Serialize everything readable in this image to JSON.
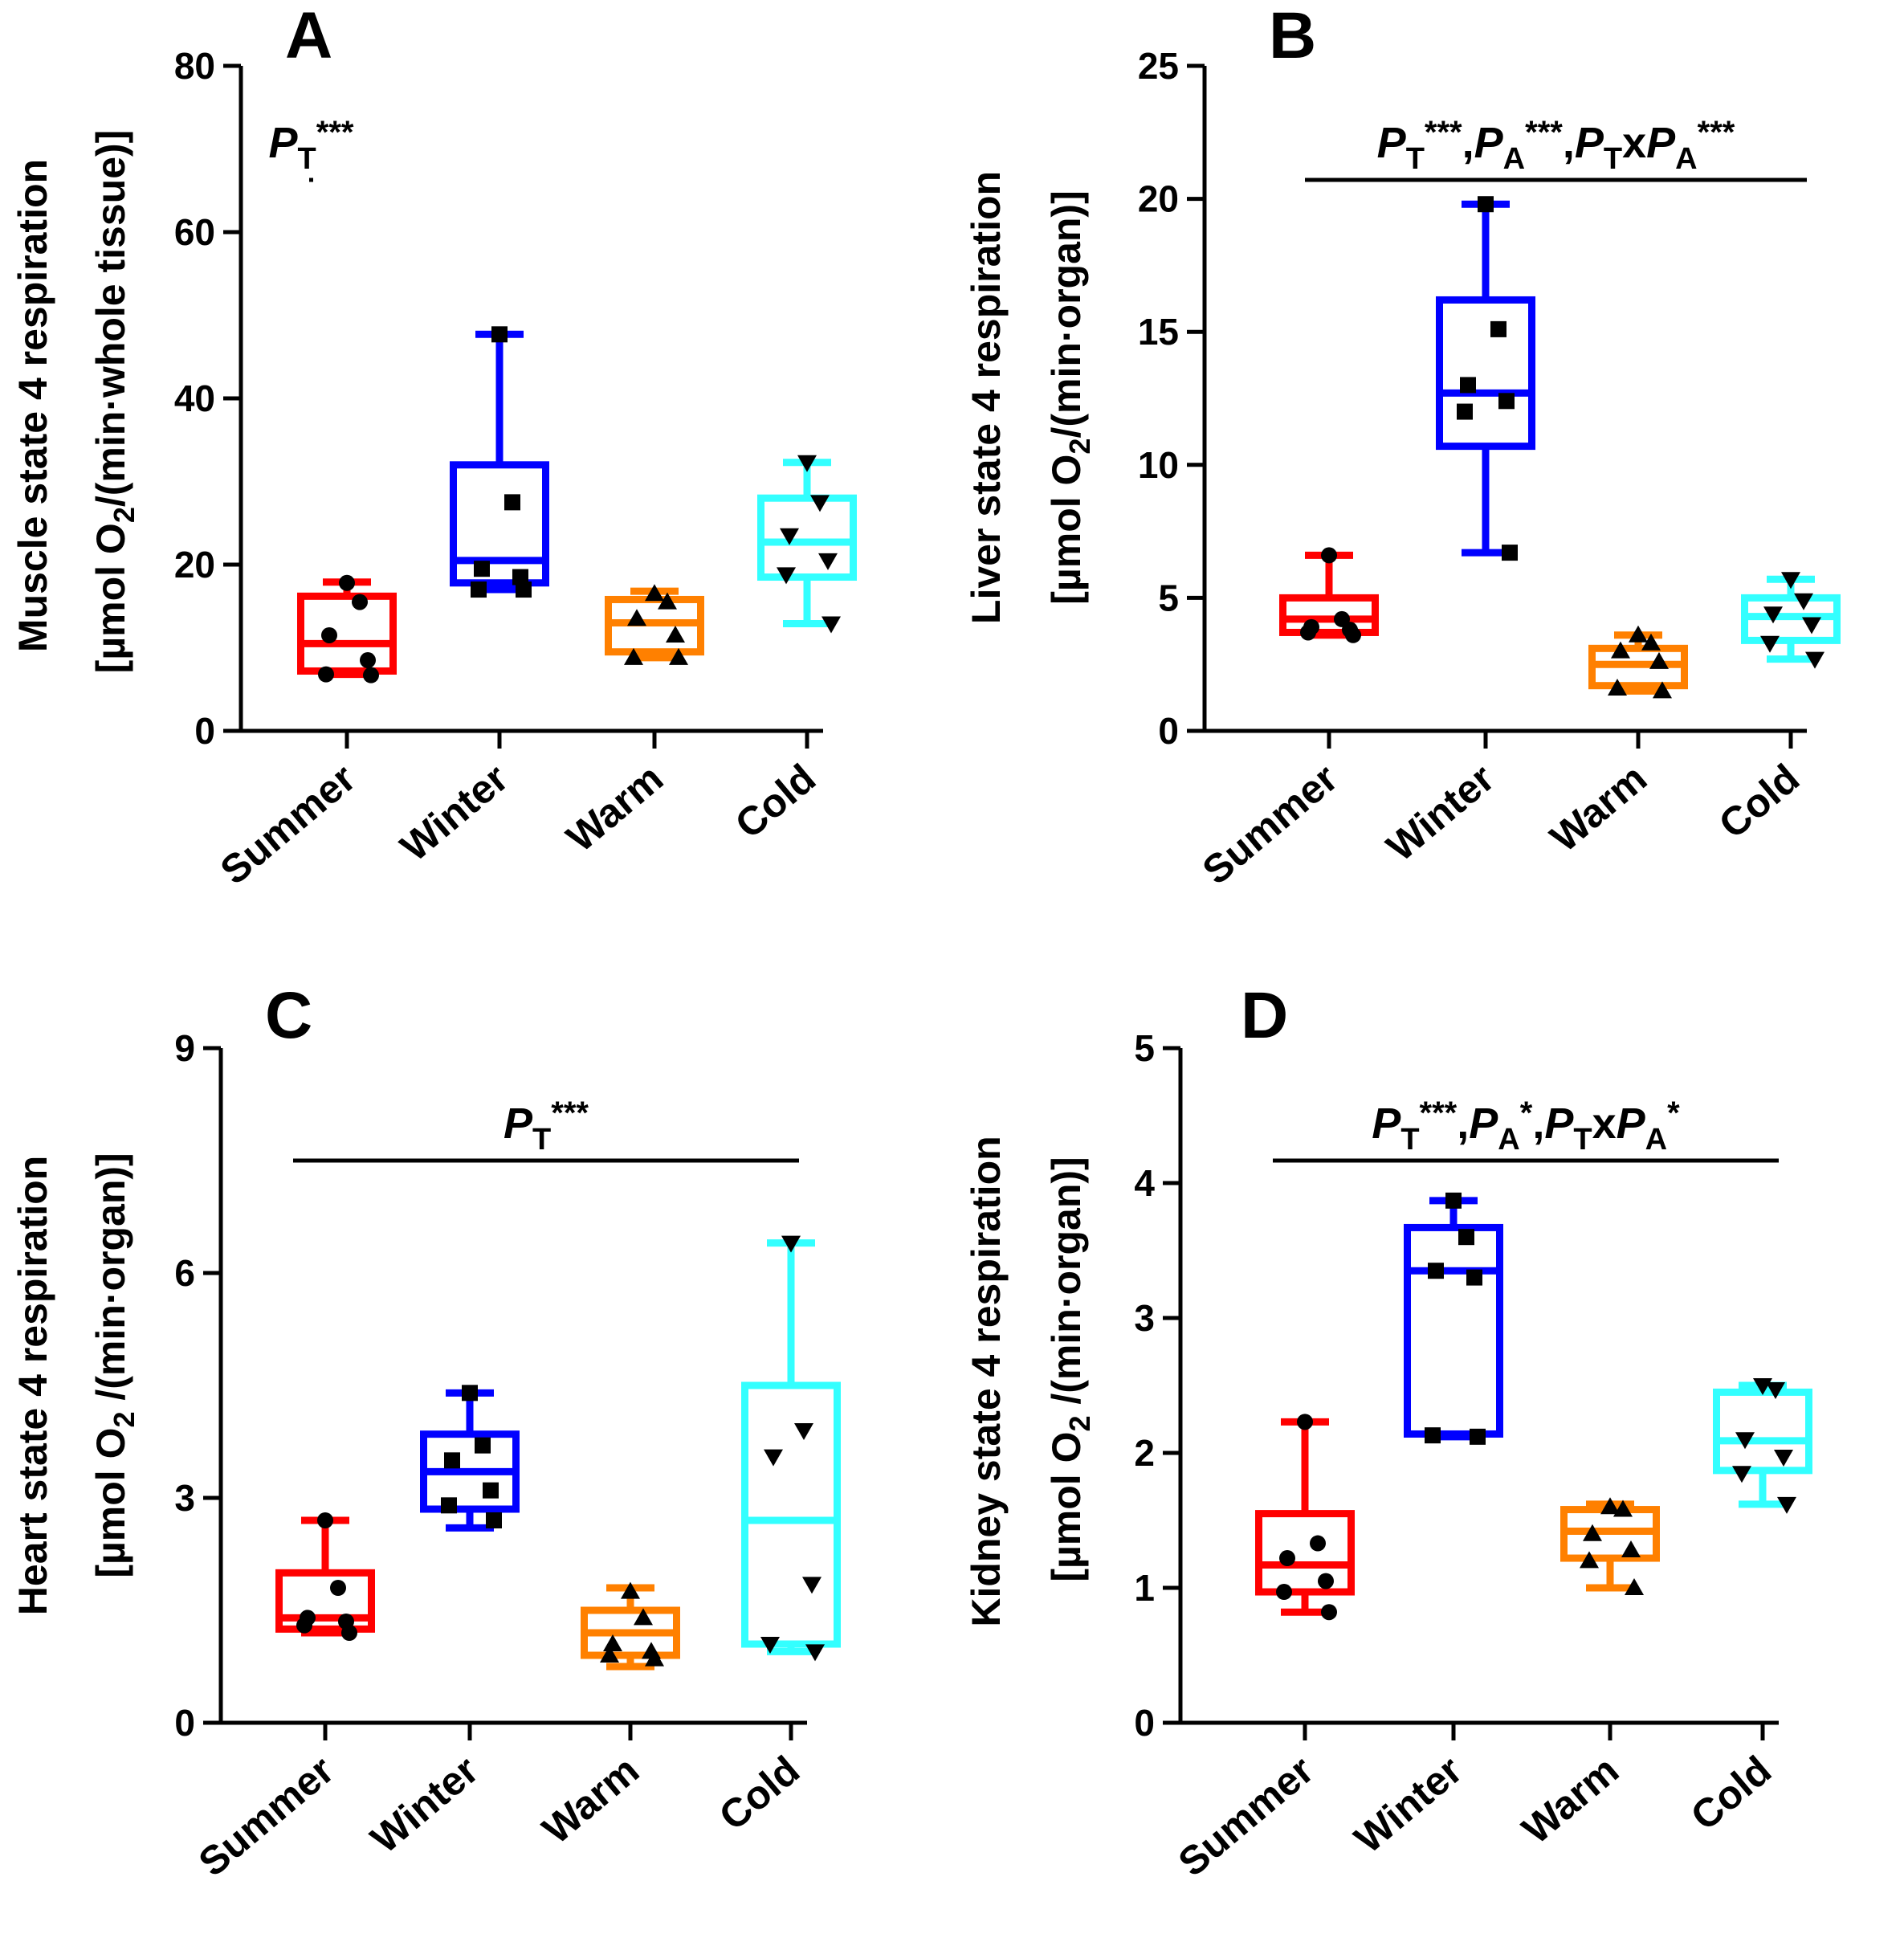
{
  "colors": {
    "Summer": "#ff0000",
    "Winter": "#0000ff",
    "Warm": "#ff8000",
    "Cold": "#33ffff",
    "axis": "#000000",
    "points": "#000000"
  },
  "chart_data": [
    {
      "type": "box",
      "panel": "A",
      "categories": [
        "Summer",
        "Winter",
        "Warm",
        "Cold"
      ],
      "ylabel_line1": "Muscle state 4 respiration",
      "ylabel_line2_prefix": "[µmol O",
      "ylabel_line2_sub": "2",
      "ylabel_line2_suffix": "/(min·whole tissue)]",
      "ylim": [
        0,
        80
      ],
      "yticks": [
        0,
        20,
        40,
        60,
        80
      ],
      "significance": {
        "parts": [
          {
            "t": "P",
            "i": true
          },
          {
            "t": "T",
            "s": "sub"
          },
          {
            "t": "***",
            "s": "sup"
          }
        ]
      },
      "boxes": [
        {
          "name": "Summer",
          "min": 6.8,
          "q1": 7.2,
          "median": 10.5,
          "q3": 16.2,
          "max": 17.9,
          "marker": "circle",
          "points": [
            17.8,
            15.5,
            11.5,
            8.5,
            6.8,
            6.7
          ]
        },
        {
          "name": "Winter",
          "min": 17.0,
          "q1": 17.8,
          "median": 20.5,
          "q3": 32.0,
          "max": 47.7,
          "marker": "square",
          "points": [
            47.7,
            27.5,
            19.5,
            18.5,
            17.0,
            17.0
          ]
        },
        {
          "name": "Warm",
          "min": 8.8,
          "q1": 9.5,
          "median": 13.0,
          "q3": 15.8,
          "max": 16.8,
          "marker": "triangle-up",
          "points": [
            16.5,
            15.5,
            13.5,
            11.5,
            8.8,
            8.8
          ]
        },
        {
          "name": "Cold",
          "min": 12.9,
          "q1": 18.5,
          "median": 22.7,
          "q3": 28.0,
          "max": 32.3,
          "marker": "triangle-down",
          "points": [
            32.3,
            27.5,
            23.5,
            20.5,
            18.8,
            12.9
          ]
        }
      ]
    },
    {
      "type": "box",
      "panel": "B",
      "categories": [
        "Summer",
        "Winter",
        "Warm",
        "Cold"
      ],
      "ylabel_line1": "Liver state 4 respiration",
      "ylabel_line2_prefix": "[µmol O",
      "ylabel_line2_sub": "2",
      "ylabel_line2_suffix": "/(min·organ)]",
      "ylim": [
        0,
        25
      ],
      "yticks": [
        0,
        5,
        10,
        15,
        20,
        25
      ],
      "significance": {
        "parts": [
          {
            "t": "P",
            "i": true
          },
          {
            "t": "T",
            "s": "sub"
          },
          {
            "t": "***",
            "s": "sup"
          },
          {
            "t": ","
          },
          {
            "t": "P",
            "i": true
          },
          {
            "t": "A",
            "s": "sub"
          },
          {
            "t": "***",
            "s": "sup"
          },
          {
            "t": ","
          },
          {
            "t": "P",
            "i": true
          },
          {
            "t": "T",
            "s": "sub"
          },
          {
            "t": "x"
          },
          {
            "t": "P",
            "i": true
          },
          {
            "t": "A",
            "s": "sub"
          },
          {
            "t": "***",
            "s": "sup"
          }
        ]
      },
      "boxes": [
        {
          "name": "Summer",
          "min": 3.6,
          "q1": 3.7,
          "median": 4.2,
          "q3": 5.0,
          "max": 6.6,
          "marker": "circle",
          "points": [
            6.6,
            4.2,
            3.9,
            3.8,
            3.7,
            3.6
          ]
        },
        {
          "name": "Winter",
          "min": 6.7,
          "q1": 10.7,
          "median": 12.7,
          "q3": 16.2,
          "max": 19.8,
          "marker": "square",
          "points": [
            19.8,
            15.1,
            13.0,
            12.4,
            12.0,
            6.7
          ]
        },
        {
          "name": "Warm",
          "min": 1.5,
          "q1": 1.7,
          "median": 2.5,
          "q3": 3.1,
          "max": 3.6,
          "marker": "triangle-up",
          "points": [
            3.6,
            3.3,
            3.0,
            2.6,
            1.6,
            1.5
          ]
        },
        {
          "name": "Cold",
          "min": 2.7,
          "q1": 3.4,
          "median": 4.3,
          "q3": 5.0,
          "max": 5.7,
          "marker": "triangle-down",
          "points": [
            5.7,
            4.9,
            4.4,
            4.0,
            3.3,
            2.7
          ]
        }
      ]
    },
    {
      "type": "box",
      "panel": "C",
      "categories": [
        "Summer",
        "Winter",
        "Warm",
        "Cold"
      ],
      "ylabel_line1": "Heart state 4 respiration",
      "ylabel_line2_prefix": "[µmol O",
      "ylabel_line2_sub": "2",
      "ylabel_line2_suffix": " /(min·organ)]",
      "ylim": [
        0,
        9
      ],
      "yticks": [
        0,
        3,
        6,
        9
      ],
      "significance": {
        "parts": [
          {
            "t": "P",
            "i": true
          },
          {
            "t": "T",
            "s": "sub"
          },
          {
            "t": "***",
            "s": "sup"
          }
        ]
      },
      "boxes": [
        {
          "name": "Summer",
          "min": 1.2,
          "q1": 1.25,
          "median": 1.4,
          "q3": 2.0,
          "max": 2.7,
          "marker": "circle",
          "points": [
            2.7,
            1.8,
            1.4,
            1.35,
            1.3,
            1.2
          ]
        },
        {
          "name": "Winter",
          "min": 2.6,
          "q1": 2.85,
          "median": 3.35,
          "q3": 3.85,
          "max": 4.4,
          "marker": "square",
          "points": [
            4.4,
            3.7,
            3.5,
            3.1,
            2.9,
            2.7
          ]
        },
        {
          "name": "Warm",
          "min": 0.75,
          "q1": 0.9,
          "median": 1.2,
          "q3": 1.5,
          "max": 1.8,
          "marker": "triangle-up",
          "points": [
            1.75,
            1.4,
            1.05,
            0.95,
            0.9,
            0.85
          ]
        },
        {
          "name": "Cold",
          "min": 0.95,
          "q1": 1.05,
          "median": 2.7,
          "q3": 4.5,
          "max": 6.4,
          "marker": "triangle-down",
          "points": [
            6.4,
            3.9,
            3.55,
            1.85,
            1.05,
            0.95
          ]
        }
      ]
    },
    {
      "type": "box",
      "panel": "D",
      "categories": [
        "Summer",
        "Winter",
        "Warm",
        "Cold"
      ],
      "ylabel_line1": "Kidney state 4 respiration",
      "ylabel_line2_prefix": "[µmol O",
      "ylabel_line2_sub": "2",
      "ylabel_line2_suffix": " /(min·organ)]",
      "ylim": [
        0,
        5
      ],
      "yticks": [
        0,
        1,
        2,
        3,
        4,
        5
      ],
      "significance": {
        "parts": [
          {
            "t": "P",
            "i": true
          },
          {
            "t": "T",
            "s": "sub"
          },
          {
            "t": "***",
            "s": "sup"
          },
          {
            "t": ","
          },
          {
            "t": "P",
            "i": true
          },
          {
            "t": "A",
            "s": "sub"
          },
          {
            "t": "*",
            "s": "sup"
          },
          {
            "t": ","
          },
          {
            "t": "P",
            "i": true
          },
          {
            "t": "T",
            "s": "sub"
          },
          {
            "t": "x"
          },
          {
            "t": "P",
            "i": true
          },
          {
            "t": "A",
            "s": "sub"
          },
          {
            "t": "*",
            "s": "sup"
          }
        ]
      },
      "boxes": [
        {
          "name": "Summer",
          "min": 0.82,
          "q1": 0.97,
          "median": 1.17,
          "q3": 1.55,
          "max": 2.23,
          "marker": "circle",
          "points": [
            2.23,
            1.33,
            1.22,
            1.05,
            0.97,
            0.82
          ]
        },
        {
          "name": "Winter",
          "min": 2.12,
          "q1": 2.14,
          "median": 3.35,
          "q3": 3.67,
          "max": 3.87,
          "marker": "square",
          "points": [
            3.87,
            3.6,
            3.35,
            3.3,
            2.13,
            2.12
          ]
        },
        {
          "name": "Warm",
          "min": 1.0,
          "q1": 1.22,
          "median": 1.42,
          "q3": 1.58,
          "max": 1.62,
          "marker": "triangle-up",
          "points": [
            1.6,
            1.58,
            1.4,
            1.28,
            1.2,
            1.0
          ]
        },
        {
          "name": "Cold",
          "min": 1.62,
          "q1": 1.87,
          "median": 2.09,
          "q3": 2.45,
          "max": 2.5,
          "marker": "triangle-down",
          "points": [
            2.5,
            2.47,
            2.1,
            1.97,
            1.85,
            1.62
          ]
        }
      ]
    }
  ]
}
